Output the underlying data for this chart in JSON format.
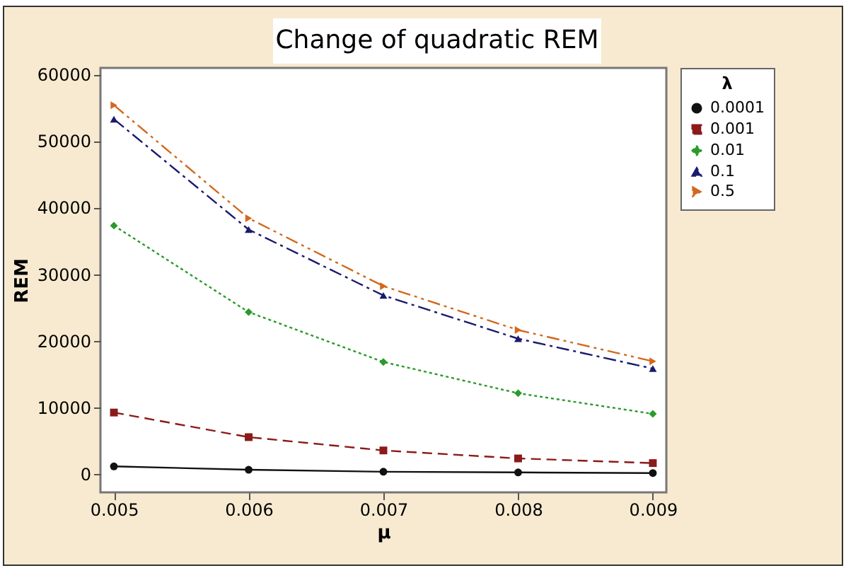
{
  "chart_data": {
    "type": "line",
    "title": "Change of quadratic REM",
    "xlabel": "μ",
    "ylabel": "REM",
    "legend_title": "λ",
    "x": [
      0.005,
      0.006,
      0.007,
      0.008,
      0.009
    ],
    "series": [
      {
        "name": "0.0001",
        "color": "#111111",
        "marker": "circle",
        "line_style": "solid",
        "values": [
          1100,
          600,
          300,
          200,
          100
        ]
      },
      {
        "name": "0.001",
        "color": "#8b1a1a",
        "marker": "square",
        "line_style": "dashed",
        "values": [
          9200,
          5500,
          3500,
          2300,
          1600
        ]
      },
      {
        "name": "0.01",
        "color": "#2a9a2a",
        "marker": "diamond",
        "line_style": "dotted",
        "values": [
          37300,
          24300,
          16800,
          12100,
          9000
        ]
      },
      {
        "name": "0.1",
        "color": "#1a1a6e",
        "marker": "triangle",
        "line_style": "dashdot",
        "values": [
          53300,
          36700,
          26800,
          20300,
          15800
        ]
      },
      {
        "name": "0.5",
        "color": "#d2691e",
        "marker": "triangle-right",
        "line_style": "dashdotdot",
        "values": [
          55400,
          38400,
          28200,
          21600,
          16900
        ]
      }
    ],
    "xlim": [
      0.0049,
      0.0091
    ],
    "xticks": [
      0.005,
      0.006,
      0.007,
      0.008,
      0.009
    ],
    "ylim": [
      -2800,
      61000
    ],
    "yticks": [
      0,
      10000,
      20000,
      30000,
      40000,
      50000,
      60000
    ],
    "grid": false,
    "legend": "top right"
  }
}
